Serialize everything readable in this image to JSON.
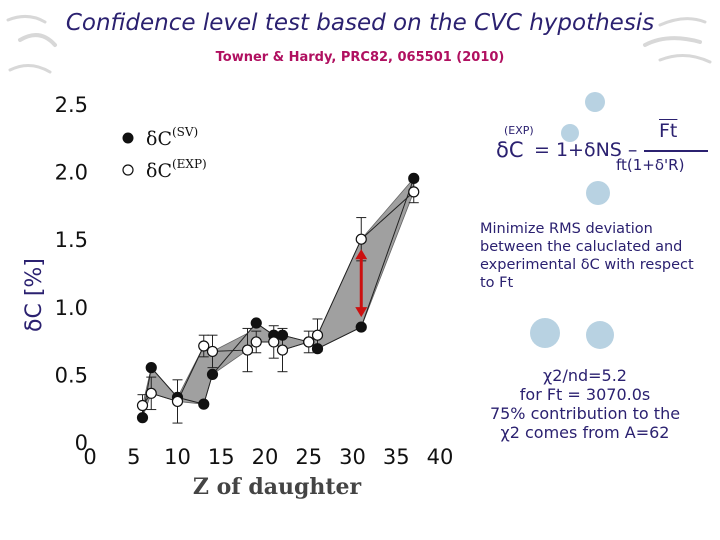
{
  "title": "Confidence level test based on the CVC hypothesis",
  "subtitle": "Towner & Hardy, PRC82, 065501 (2010)",
  "colors": {
    "title": "#2b2170",
    "subtitle": "#b01060",
    "band": "#a0a0a0",
    "arrow": "#cc1010",
    "bubble": "#b8d2e2"
  },
  "chart_data": {
    "type": "scatter",
    "xlabel": "Z of daughter",
    "ylabel": "δC [%]",
    "xlim": [
      0,
      40
    ],
    "ylim": [
      0,
      2.5
    ],
    "xticks": [
      "0",
      "5",
      "10",
      "15",
      "20",
      "25",
      "30",
      "35",
      "40"
    ],
    "yticks": [
      "0",
      "0.5",
      "1.0",
      "1.5",
      "2.0",
      "2.5"
    ],
    "legend": {
      "position": "top-left",
      "sv_symbol": "δC",
      "sv_sup": "(SV)",
      "exp_symbol": "δC",
      "exp_sup": "(EXP)"
    },
    "series": [
      {
        "name": "δC(SV)",
        "marker": "filled",
        "x": [
          6,
          7,
          10,
          13,
          14,
          19,
          21,
          22,
          25,
          26,
          31,
          37
        ],
        "y": [
          0.18,
          0.55,
          0.33,
          0.28,
          0.5,
          0.88,
          0.79,
          0.79,
          0.74,
          0.69,
          0.85,
          1.95
        ]
      },
      {
        "name": "δC(EXP)",
        "marker": "open",
        "x": [
          6,
          7,
          10,
          13,
          14,
          18,
          19,
          21,
          22,
          25,
          26,
          31,
          37
        ],
        "y": [
          0.27,
          0.36,
          0.3,
          0.71,
          0.67,
          0.68,
          0.74,
          0.74,
          0.68,
          0.74,
          0.79,
          1.5,
          1.85
        ]
      }
    ],
    "annotation": "red double-headed arrow at Z=31 between δC(EXP) and δC(SV)"
  },
  "formula": {
    "lhs": "δC",
    "lhs_sup": "(EXP)",
    "middle": "= 1+δNS –",
    "numerator": "Ft",
    "denominator": "ft(1+δ'R)"
  },
  "info_text": "Minimize RMS deviation between the caluclated and experimental δC with respect to Ft",
  "chi_line1": "χ2/nd=5.2",
  "chi_line2": "for Ft = 3070.0s",
  "chi_line3": "75% contribution to the",
  "chi_line4": "χ2 comes from A=62"
}
